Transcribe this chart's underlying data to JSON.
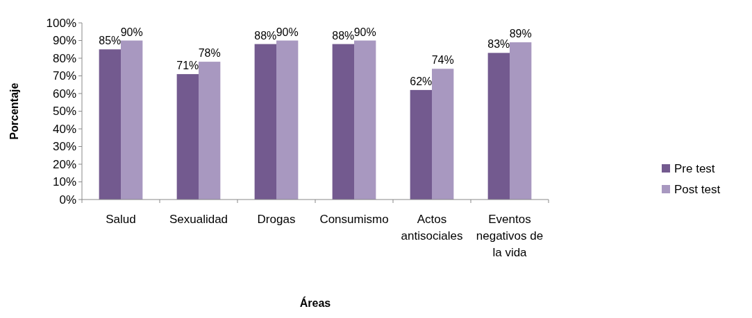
{
  "chart_data": {
    "type": "bar",
    "xlabel": "Áreas",
    "ylabel": "Porcentaje",
    "categories": [
      "Salud",
      "Sexualidad",
      "Drogas",
      "Consumismo",
      "Actos antisociales",
      "Eventos negativos de la vida"
    ],
    "series": [
      {
        "name": "Pre test",
        "color": "#735a8f",
        "values": [
          85,
          71,
          88,
          88,
          62,
          83
        ],
        "value_labels": [
          "85%",
          "71%",
          "88%",
          "88%",
          "62%",
          "83%"
        ]
      },
      {
        "name": "Post test",
        "color": "#a898c0",
        "values": [
          90,
          78,
          90,
          90,
          74,
          89
        ],
        "value_labels": [
          "90%",
          "78%",
          "90%",
          "90%",
          "74%",
          "89%"
        ]
      }
    ],
    "ylim": [
      0,
      100
    ],
    "yticks": [
      {
        "value": 0,
        "label": "0%"
      },
      {
        "value": 10,
        "label": "10%"
      },
      {
        "value": 20,
        "label": "20%"
      },
      {
        "value": 30,
        "label": "30%"
      },
      {
        "value": 40,
        "label": "40%"
      },
      {
        "value": 50,
        "label": "50%"
      },
      {
        "value": 60,
        "label": "60%"
      },
      {
        "value": 70,
        "label": "70%"
      },
      {
        "value": 80,
        "label": "80%"
      },
      {
        "value": 90,
        "label": "90%"
      },
      {
        "value": 100,
        "label": "100%"
      }
    ],
    "grid": false,
    "legend": "right"
  }
}
